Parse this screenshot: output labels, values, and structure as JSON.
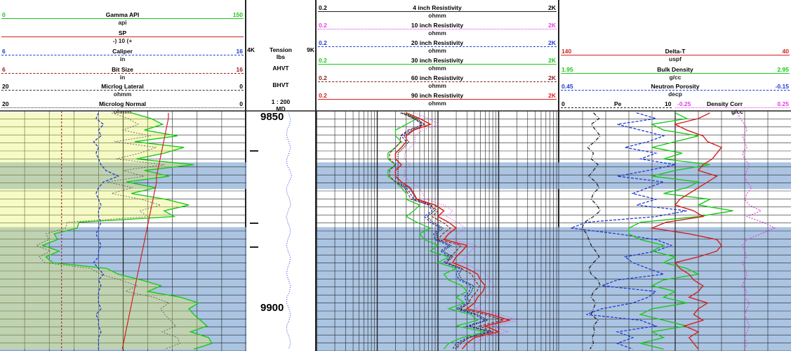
{
  "chart_data": {
    "type": "line",
    "title": "",
    "depth_scale": "1 : 200",
    "depth_unit": "MD",
    "depth_labels": [
      {
        "label": "9850",
        "depth": 9850
      },
      {
        "label": "9900",
        "depth": 9900
      }
    ],
    "depth_range": [
      9849,
      9912
    ],
    "shaded_intervals_depth": [
      [
        9862.5,
        9869.5
      ],
      [
        9879.5,
        9912
      ]
    ],
    "tracks": [
      {
        "name": "track-1",
        "curves": [
          {
            "name": "Gamma API",
            "unit": "api",
            "min": "0",
            "max": "150",
            "color": "#19c919",
            "style": "solid"
          },
          {
            "name": "SP",
            "unit": "-) 10 (+",
            "min": "",
            "max": "",
            "color": "#d42020",
            "style": "solid"
          },
          {
            "name": "Caliper",
            "unit": "in",
            "min": "6",
            "max": "16",
            "color": "#1f3bd6",
            "style": "dashed"
          },
          {
            "name": "Bit Size",
            "unit": "in",
            "min": "6",
            "max": "16",
            "color": "#9b1e1e",
            "style": "dashed"
          },
          {
            "name": "Micrlog Lateral",
            "unit": "ohmm",
            "min": "20",
            "max": "0",
            "color": "#333333",
            "style": "dashed"
          },
          {
            "name": "Microlog Normal",
            "unit": "ohmm",
            "min": "20",
            "max": "0",
            "color": "#333333",
            "style": "dotted"
          }
        ]
      },
      {
        "name": "depth-track",
        "items": [
          {
            "name": "Tension",
            "unit": "lbs",
            "min": "4K",
            "max": "9K"
          },
          {
            "name": "AHVT"
          },
          {
            "name": "BHVT"
          }
        ]
      },
      {
        "name": "resistivity-track",
        "curves": [
          {
            "name": "4 inch Resistivity",
            "unit": "ohmm",
            "min": "0.2",
            "max": "2K",
            "color": "#222222"
          },
          {
            "name": "10 inch Resistivity",
            "unit": "ohmm",
            "min": "0.2",
            "max": "2K",
            "color": "#e23fe2"
          },
          {
            "name": "20 inch Resistivity",
            "unit": "ohmm",
            "min": "0.2",
            "max": "2K",
            "color": "#1f3bd6"
          },
          {
            "name": "30 inch Resistivity",
            "unit": "ohmm",
            "min": "0.2",
            "max": "2K",
            "color": "#19c919"
          },
          {
            "name": "60 inch Resistivity",
            "unit": "ohmm",
            "min": "0.2",
            "max": "2K",
            "color": "#8b1e1e"
          },
          {
            "name": "90 inch Resistivity",
            "unit": "ohmm",
            "min": "0.2",
            "max": "2K",
            "color": "#e01b1b"
          }
        ]
      },
      {
        "name": "porosity-track",
        "curves": [
          {
            "name": "Delta-T",
            "unit": "uspf",
            "min": "140",
            "max": "40",
            "color": "#d42020"
          },
          {
            "name": "Bulk Density",
            "unit": "g/cc",
            "min": "1.95",
            "max": "2.95",
            "color": "#19c919"
          },
          {
            "name": "Neutron Porosity",
            "unit": "decp",
            "min": "0.45",
            "max": "-0.15",
            "color": "#1f3bd6"
          },
          {
            "name": "Pe",
            "unit": "",
            "min": "0",
            "max": "10",
            "color": "#222222"
          },
          {
            "name": "Density Corr",
            "unit": "g/cc",
            "min": "-0.25",
            "max": "0.25",
            "color": "#e23fe2"
          }
        ]
      }
    ],
    "series_values": {
      "gamma": [
        80,
        92,
        99,
        88,
        108,
        82,
        112,
        100,
        83,
        118,
        88,
        103,
        77,
        95,
        80,
        101,
        115,
        100,
        106,
        48,
        47,
        33,
        35,
        26,
        36,
        28,
        32,
        65,
        72,
        86,
        98,
        90,
        110,
        121,
        115,
        118,
        122,
        126,
        116,
        127,
        129,
        118
      ],
      "caliper": [
        10.0,
        9.9,
        10.2,
        10.0,
        10.1,
        9.8,
        10.0,
        9.9,
        10.0,
        10.1,
        10.3,
        10.8,
        10.2,
        10.0,
        9.9,
        10.0,
        10.1,
        10.0,
        10.0,
        10.1,
        10.0,
        9.9,
        10.0,
        10.1,
        10.0,
        10.0,
        9.8,
        10.0,
        10.2,
        10.0,
        10.1,
        10.0,
        10.0,
        10.0,
        10.1,
        9.9,
        10.0,
        10.0,
        10.1,
        10.0,
        10.0,
        10.0
      ],
      "bitsize": 8.5,
      "sp_shift": [
        8.6,
        8.6,
        8.5,
        8.4,
        8.3,
        8.2,
        8.1,
        8.0,
        7.9,
        7.8,
        7.7,
        7.6,
        7.6,
        7.5,
        7.4,
        7.3,
        7.2,
        7.1,
        7.0,
        6.9,
        6.8,
        6.7,
        6.6,
        6.5,
        6.4,
        6.3,
        6.2,
        6.1,
        6.0,
        5.9,
        5.8,
        5.7,
        5.6,
        5.5,
        5.4,
        5.3,
        5.2,
        5.1,
        5.0,
        4.9,
        4.8,
        4.7
      ],
      "res_shallow": [
        5,
        9,
        6,
        4,
        4,
        5,
        4,
        3,
        3,
        4,
        3,
        3,
        4,
        5,
        6,
        6,
        10,
        8,
        6,
        9,
        15,
        10,
        12,
        20,
        15,
        30,
        20,
        40,
        25,
        30,
        50,
        60,
        40,
        55,
        30,
        70,
        90,
        40,
        120,
        50,
        30,
        25
      ],
      "res_deep": [
        6,
        10,
        15,
        8,
        6,
        6,
        5,
        4,
        4,
        5,
        4,
        4,
        5,
        7,
        8,
        9,
        18,
        25,
        20,
        30,
        40,
        30,
        25,
        60,
        50,
        40,
        35,
        60,
        90,
        100,
        120,
        110,
        90,
        80,
        60,
        150,
        300,
        120,
        200,
        80,
        60,
        50
      ],
      "res_mid": [
        5,
        8,
        11,
        7,
        5,
        6,
        5,
        4,
        4,
        4,
        4,
        4,
        4,
        6,
        7,
        8,
        14,
        16,
        12,
        15,
        22,
        17,
        18,
        30,
        22,
        32,
        25,
        45,
        40,
        45,
        70,
        65,
        55,
        60,
        40,
        80,
        120,
        60,
        140,
        60,
        40,
        35
      ],
      "dt": [
        75,
        80,
        90,
        85,
        78,
        76,
        70,
        72,
        74,
        78,
        80,
        72,
        76,
        80,
        84,
        88,
        90,
        82,
        78,
        94,
        100,
        84,
        72,
        70,
        72,
        80,
        90,
        88,
        84,
        82,
        78,
        80,
        84,
        76,
        80,
        82,
        78,
        86,
        80,
        84,
        82,
        80
      ],
      "rhob": [
        2.45,
        2.5,
        2.35,
        2.4,
        2.55,
        2.45,
        2.35,
        2.48,
        2.4,
        2.6,
        2.45,
        2.35,
        2.55,
        2.5,
        2.4,
        2.6,
        2.55,
        2.7,
        2.55,
        2.3,
        2.25,
        2.25,
        2.3,
        2.4,
        2.35,
        2.45,
        2.4,
        2.5,
        2.55,
        2.4,
        2.35,
        2.45,
        2.4,
        2.5,
        2.35,
        2.3,
        2.4,
        2.5,
        2.35,
        2.4,
        2.3,
        2.4
      ],
      "nphi": [
        0.25,
        0.2,
        0.3,
        0.24,
        0.18,
        0.22,
        0.28,
        0.2,
        0.24,
        0.15,
        0.22,
        0.3,
        0.18,
        0.22,
        0.26,
        0.2,
        0.25,
        0.12,
        0.2,
        0.38,
        0.42,
        0.3,
        0.2,
        0.16,
        0.2,
        0.28,
        0.26,
        0.22,
        0.18,
        0.3,
        0.34,
        0.2,
        0.22,
        0.26,
        0.34,
        0.38,
        0.24,
        0.2,
        0.3,
        0.26,
        0.3,
        0.26
      ],
      "pe": [
        3.0,
        3.5,
        2.8,
        3.2,
        3.6,
        3.1,
        2.5,
        3.0,
        2.8,
        3.4,
        3.0,
        2.6,
        3.2,
        3.5,
        3.0,
        2.8,
        3.3,
        3.6,
        3.0,
        2.2,
        2.0,
        2.4,
        2.6,
        2.8,
        3.2,
        3.5,
        3.0,
        2.6,
        2.8,
        3.4,
        3.6,
        3.0,
        2.8,
        3.2,
        3.0,
        2.8,
        3.4,
        3.0,
        3.1,
        2.9,
        3.0,
        2.7
      ],
      "drho": [
        0.02,
        0.03,
        0.05,
        0.06,
        0.04,
        0.05,
        0.06,
        0.04,
        0.05,
        0.07,
        0.06,
        0.05,
        0.06,
        0.08,
        0.06,
        0.05,
        0.07,
        0.12,
        0.06,
        0.13,
        0.18,
        0.12,
        0.06,
        0.04,
        0.05,
        0.06,
        0.04,
        0.05,
        0.06,
        0.05,
        0.04,
        0.06,
        0.05,
        0.07,
        0.06,
        0.05,
        0.06,
        0.07,
        0.06,
        0.05,
        0.06,
        0.05
      ]
    }
  }
}
